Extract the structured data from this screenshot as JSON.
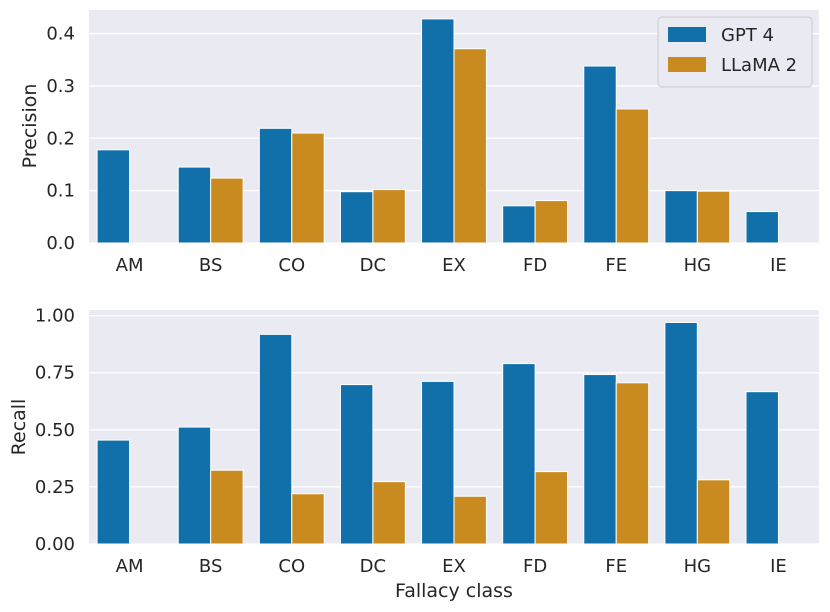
{
  "chart_data": [
    {
      "type": "bar",
      "title": "",
      "xlabel": "",
      "ylabel": "Precision",
      "ylim": [
        0,
        0.445
      ],
      "yticks": [
        "0.0",
        "0.1",
        "0.2",
        "0.3",
        "0.4"
      ],
      "ytick_values": [
        0,
        0.1,
        0.2,
        0.3,
        0.4
      ],
      "grid": true,
      "legend_position": "top-right",
      "categories": [
        "AM",
        "BS",
        "CO",
        "DC",
        "EX",
        "FD",
        "FE",
        "HG",
        "IE"
      ],
      "series": [
        {
          "name": "GPT 4",
          "color": "#1170aa",
          "values": [
            0.178,
            0.145,
            0.219,
            0.098,
            0.428,
            0.071,
            0.338,
            0.1,
            0.06
          ]
        },
        {
          "name": "LLaMA 2",
          "color": "#c98b1f",
          "values": [
            0.0,
            0.124,
            0.21,
            0.102,
            0.371,
            0.081,
            0.256,
            0.099,
            0.0
          ]
        }
      ]
    },
    {
      "type": "bar",
      "title": "",
      "xlabel": "Fallacy class",
      "ylabel": "Recall",
      "ylim": [
        0,
        1.0247
      ],
      "yticks": [
        "0.00",
        "0.25",
        "0.50",
        "0.75",
        "1.00"
      ],
      "ytick_values": [
        0,
        0.25,
        0.5,
        0.75,
        1.0
      ],
      "grid": true,
      "categories": [
        "AM",
        "BS",
        "CO",
        "DC",
        "EX",
        "FD",
        "FE",
        "HG",
        "IE"
      ],
      "series": [
        {
          "name": "GPT 4",
          "color": "#1170aa",
          "values": [
            0.455,
            0.512,
            0.918,
            0.698,
            0.712,
            0.79,
            0.742,
            0.97,
            0.667
          ]
        },
        {
          "name": "LLaMA 2",
          "color": "#c98b1f",
          "values": [
            0.0,
            0.323,
            0.22,
            0.273,
            0.209,
            0.317,
            0.706,
            0.281,
            0.0
          ]
        }
      ]
    }
  ]
}
